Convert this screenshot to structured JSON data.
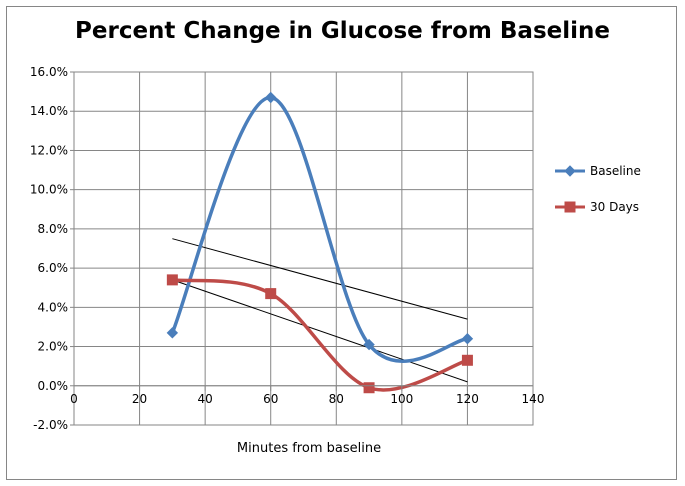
{
  "chart_data": {
    "type": "line",
    "title": "Percent Change in Glucose from Baseline",
    "xlabel": "Minutes from baseline",
    "ylabel": "",
    "xlim": [
      0,
      140
    ],
    "ylim": [
      -2.0,
      16.0
    ],
    "x_ticks": [
      0,
      20,
      40,
      60,
      80,
      100,
      120,
      140
    ],
    "y_ticks": [
      -2.0,
      0.0,
      2.0,
      4.0,
      6.0,
      8.0,
      10.0,
      12.0,
      14.0,
      16.0
    ],
    "y_tick_labels": [
      "-2.0%",
      "0.0%",
      "2.0%",
      "4.0%",
      "6.0%",
      "8.0%",
      "10.0%",
      "12.0%",
      "14.0%",
      "16.0%"
    ],
    "grid": true,
    "legend_position": "right",
    "smoothed": true,
    "series": [
      {
        "name": "Baseline",
        "color": "#4a7ebb",
        "marker": "diamond",
        "x": [
          30,
          60,
          90,
          120
        ],
        "y": [
          2.7,
          14.7,
          2.1,
          2.4
        ]
      },
      {
        "name": "30 Days",
        "color": "#be4b48",
        "marker": "square",
        "x": [
          30,
          60,
          90,
          120
        ],
        "y": [
          5.4,
          4.7,
          -0.1,
          1.3
        ]
      }
    ],
    "trendlines": [
      {
        "color": "#000000",
        "x": [
          30,
          120
        ],
        "y": [
          7.5,
          3.4
        ]
      },
      {
        "color": "#000000",
        "x": [
          30,
          120
        ],
        "y": [
          5.4,
          0.2
        ]
      }
    ]
  }
}
